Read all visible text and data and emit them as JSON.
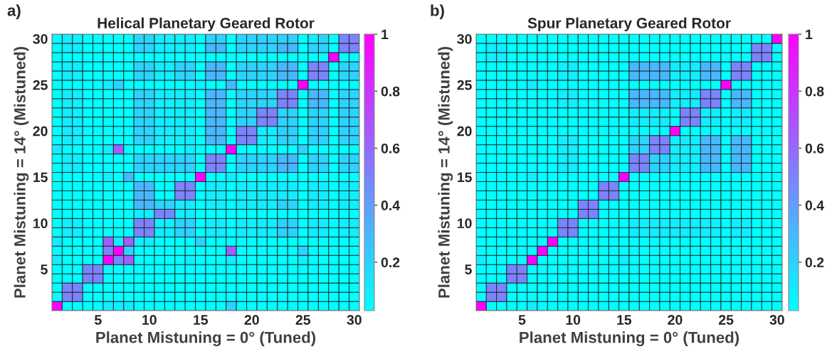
{
  "chart_data": [
    {
      "type": "heatmap",
      "title": "Helical Planetary Geared Rotor",
      "xlabel": "Planet Mistuning = 0° (Tuned)",
      "ylabel": "Planet Mistuning = 14° (Mistuned)",
      "annotations": [
        "a)"
      ],
      "categories": [
        null,
        null,
        null,
        null,
        "5",
        null,
        null,
        null,
        null,
        "10",
        null,
        null,
        null,
        null,
        "15",
        null,
        null,
        null,
        null,
        "20",
        null,
        null,
        null,
        null,
        "25",
        null,
        null,
        null,
        null,
        "30"
      ],
      "y_categories": [
        "30",
        null,
        null,
        null,
        null,
        "25",
        null,
        null,
        null,
        null,
        "20",
        null,
        null,
        null,
        null,
        "15",
        null,
        null,
        null,
        null,
        "10",
        null,
        null,
        null,
        null,
        "5",
        null,
        null,
        null,
        null
      ],
      "clim": [
        0.03,
        1
      ],
      "cticks": [
        0.2,
        0.4,
        0.6,
        0.8,
        1
      ],
      "cells": [
        [
          0.03,
          0.1,
          0.1,
          0.03,
          0.03,
          0.03,
          0.03,
          0.03,
          0.2,
          0.2,
          0.1,
          0.1,
          0.1,
          0.1,
          0.03,
          0.2,
          0.2,
          0.03,
          0.2,
          0.2,
          0.2,
          0.2,
          0.2,
          0.2,
          0.03,
          0.1,
          0.2,
          0.03,
          0.5,
          0.5
        ],
        [
          0.03,
          0.1,
          0.1,
          0.03,
          0.03,
          0.03,
          0.03,
          0.03,
          0.2,
          0.2,
          0.1,
          0.1,
          0.1,
          0.1,
          0.03,
          0.3,
          0.3,
          0.03,
          0.2,
          0.2,
          0.2,
          0.2,
          0.3,
          0.3,
          0.03,
          0.2,
          0.2,
          0.03,
          0.5,
          0.5
        ],
        [
          0.03,
          0.03,
          0.03,
          0.03,
          0.03,
          0.03,
          0.03,
          0.03,
          0.03,
          0.03,
          0.03,
          0.03,
          0.03,
          0.03,
          0.03,
          0.03,
          0.03,
          0.03,
          0.03,
          0.03,
          0.03,
          0.03,
          0.03,
          0.03,
          0.03,
          0.03,
          0.03,
          1,
          0.03,
          0.03
        ],
        [
          0.03,
          0.1,
          0.1,
          0.03,
          0.03,
          0.03,
          0.03,
          0.03,
          0.2,
          0.2,
          0.1,
          0.1,
          0.2,
          0.2,
          0.03,
          0.3,
          0.3,
          0.03,
          0.2,
          0.2,
          0.2,
          0.2,
          0.3,
          0.3,
          0.03,
          0.5,
          0.5,
          0.03,
          0.2,
          0.2
        ],
        [
          0.03,
          0.1,
          0.1,
          0.03,
          0.03,
          0.03,
          0.03,
          0.03,
          0.2,
          0.2,
          0.1,
          0.1,
          0.2,
          0.2,
          0.03,
          0.3,
          0.3,
          0.03,
          0.2,
          0.2,
          0.2,
          0.2,
          0.3,
          0.3,
          0.03,
          0.5,
          0.5,
          0.03,
          0.2,
          0.2
        ],
        [
          0.03,
          0.03,
          0.03,
          0.03,
          0.03,
          0.1,
          0.2,
          0.03,
          0.03,
          0.03,
          0.03,
          0.03,
          0.03,
          0.03,
          0.1,
          0.03,
          0.03,
          0.3,
          0.03,
          0.03,
          0.03,
          0.03,
          0.03,
          0.03,
          1,
          0.03,
          0.03,
          0.03,
          0.03,
          0.03
        ],
        [
          0.03,
          0.1,
          0.1,
          0.03,
          0.03,
          0.03,
          0.03,
          0.03,
          0.2,
          0.2,
          0.1,
          0.1,
          0.1,
          0.1,
          0.03,
          0.3,
          0.3,
          0.03,
          0.2,
          0.2,
          0.2,
          0.2,
          0.5,
          0.5,
          0.03,
          0.3,
          0.3,
          0.03,
          0.2,
          0.2
        ],
        [
          0.03,
          0.1,
          0.1,
          0.03,
          0.03,
          0.03,
          0.03,
          0.03,
          0.2,
          0.2,
          0.1,
          0.1,
          0.1,
          0.1,
          0.03,
          0.3,
          0.3,
          0.03,
          0.2,
          0.2,
          0.2,
          0.2,
          0.5,
          0.5,
          0.03,
          0.3,
          0.3,
          0.03,
          0.2,
          0.2
        ],
        [
          0.03,
          0.1,
          0.1,
          0.03,
          0.03,
          0.03,
          0.03,
          0.03,
          0.2,
          0.2,
          0.1,
          0.1,
          0.1,
          0.1,
          0.03,
          0.3,
          0.3,
          0.03,
          0.2,
          0.2,
          0.5,
          0.5,
          0.2,
          0.2,
          0.03,
          0.2,
          0.2,
          0.03,
          0.2,
          0.2
        ],
        [
          0.03,
          0.1,
          0.1,
          0.03,
          0.03,
          0.03,
          0.03,
          0.03,
          0.2,
          0.2,
          0.1,
          0.1,
          0.1,
          0.1,
          0.03,
          0.3,
          0.3,
          0.03,
          0.2,
          0.2,
          0.5,
          0.5,
          0.2,
          0.2,
          0.03,
          0.2,
          0.2,
          0.03,
          0.2,
          0.2
        ],
        [
          0.03,
          0.1,
          0.1,
          0.03,
          0.03,
          0.03,
          0.03,
          0.03,
          0.2,
          0.2,
          0.1,
          0.1,
          0.1,
          0.1,
          0.03,
          0.3,
          0.3,
          0.03,
          0.5,
          0.5,
          0.1,
          0.1,
          0.2,
          0.2,
          0.03,
          0.2,
          0.2,
          0.03,
          0.2,
          0.2
        ],
        [
          0.03,
          0.1,
          0.1,
          0.03,
          0.03,
          0.03,
          0.03,
          0.03,
          0.2,
          0.2,
          0.1,
          0.1,
          0.1,
          0.1,
          0.03,
          0.3,
          0.3,
          0.03,
          0.5,
          0.5,
          0.1,
          0.1,
          0.2,
          0.2,
          0.03,
          0.2,
          0.2,
          0.03,
          0.2,
          0.2
        ],
        [
          0.1,
          0.03,
          0.03,
          0.03,
          0.03,
          0.1,
          0.65,
          0.03,
          0.03,
          0.03,
          0.03,
          0.03,
          0.03,
          0.1,
          0.03,
          0.03,
          0.03,
          1,
          0.03,
          0.03,
          0.03,
          0.03,
          0.03,
          0.03,
          0.2,
          0.03,
          0.03,
          0.03,
          0.03,
          0.03
        ],
        [
          0.03,
          0.1,
          0.1,
          0.03,
          0.03,
          0.03,
          0.03,
          0.03,
          0.2,
          0.2,
          0.2,
          0.2,
          0.2,
          0.2,
          0.03,
          0.5,
          0.5,
          0.03,
          0.2,
          0.2,
          0.2,
          0.2,
          0.3,
          0.3,
          0.03,
          0.2,
          0.2,
          0.03,
          0.2,
          0.2
        ],
        [
          0.03,
          0.1,
          0.1,
          0.03,
          0.03,
          0.03,
          0.03,
          0.03,
          0.2,
          0.2,
          0.2,
          0.2,
          0.2,
          0.2,
          0.03,
          0.5,
          0.5,
          0.03,
          0.2,
          0.2,
          0.2,
          0.2,
          0.3,
          0.3,
          0.03,
          0.2,
          0.2,
          0.03,
          0.2,
          0.2
        ],
        [
          0.03,
          0.03,
          0.03,
          0.03,
          0.03,
          0.1,
          0.03,
          0.3,
          0.03,
          0.03,
          0.03,
          0.03,
          0.03,
          0.03,
          1,
          0.03,
          0.03,
          0.1,
          0.03,
          0.03,
          0.03,
          0.03,
          0.03,
          0.03,
          0.03,
          0.03,
          0.03,
          0.03,
          0.03,
          0.03
        ],
        [
          0.03,
          0.03,
          0.03,
          0.03,
          0.03,
          0.03,
          0.03,
          0.03,
          0.3,
          0.3,
          0.03,
          0.03,
          0.5,
          0.5,
          0.03,
          0.1,
          0.1,
          0.03,
          0.1,
          0.1,
          0.1,
          0.1,
          0.1,
          0.1,
          0.03,
          0.1,
          0.1,
          0.03,
          0.1,
          0.1
        ],
        [
          0.03,
          0.03,
          0.03,
          0.03,
          0.03,
          0.03,
          0.03,
          0.03,
          0.3,
          0.3,
          0.03,
          0.03,
          0.5,
          0.5,
          0.03,
          0.1,
          0.1,
          0.03,
          0.1,
          0.1,
          0.1,
          0.1,
          0.1,
          0.1,
          0.03,
          0.1,
          0.1,
          0.03,
          0.1,
          0.1
        ],
        [
          0.03,
          0.03,
          0.03,
          0.03,
          0.03,
          0.03,
          0.03,
          0.03,
          0.3,
          0.3,
          0.2,
          0.2,
          0.1,
          0.1,
          0.03,
          0.1,
          0.1,
          0.03,
          0.1,
          0.1,
          0.1,
          0.1,
          0.2,
          0.2,
          0.03,
          0.1,
          0.1,
          0.03,
          0.1,
          0.1
        ],
        [
          0.03,
          0.03,
          0.03,
          0.03,
          0.03,
          0.03,
          0.03,
          0.03,
          0.1,
          0.1,
          0.5,
          0.5,
          0.1,
          0.1,
          0.03,
          0.03,
          0.03,
          0.03,
          0.03,
          0.03,
          0.03,
          0.03,
          0.03,
          0.03,
          0.03,
          0.03,
          0.03,
          0.03,
          0.03,
          0.03
        ],
        [
          0.03,
          0.1,
          0.1,
          0.03,
          0.03,
          0.03,
          0.03,
          0.03,
          0.5,
          0.5,
          0.1,
          0.1,
          0.2,
          0.2,
          0.03,
          0.1,
          0.1,
          0.03,
          0.1,
          0.1,
          0.1,
          0.1,
          0.2,
          0.2,
          0.03,
          0.1,
          0.1,
          0.03,
          0.1,
          0.1
        ],
        [
          0.03,
          0.1,
          0.1,
          0.03,
          0.03,
          0.03,
          0.03,
          0.03,
          0.5,
          0.5,
          0.1,
          0.1,
          0.2,
          0.2,
          0.03,
          0.1,
          0.1,
          0.03,
          0.1,
          0.1,
          0.1,
          0.1,
          0.2,
          0.2,
          0.03,
          0.1,
          0.1,
          0.03,
          0.1,
          0.1
        ],
        [
          0.1,
          0.03,
          0.03,
          0.03,
          0.03,
          0.65,
          0.1,
          0.65,
          0.1,
          0.1,
          0.03,
          0.03,
          0.03,
          0.03,
          0.2,
          0.03,
          0.03,
          0.03,
          0.03,
          0.03,
          0.03,
          0.03,
          0.03,
          0.03,
          0.03,
          0.03,
          0.03,
          0.03,
          0.03,
          0.03
        ],
        [
          0.03,
          0.03,
          0.03,
          0.03,
          0.03,
          0.5,
          1,
          0.2,
          0.03,
          0.03,
          0.03,
          0.03,
          0.03,
          0.03,
          0.03,
          0.03,
          0.03,
          0.65,
          0.03,
          0.03,
          0.03,
          0.03,
          0.03,
          0.03,
          0.2,
          0.03,
          0.03,
          0.03,
          0.03,
          0.03
        ],
        [
          0.1,
          0.03,
          0.03,
          0.03,
          0.03,
          1,
          0.5,
          0.65,
          0.03,
          0.03,
          0.03,
          0.03,
          0.03,
          0.1,
          0.03,
          0.03,
          0.03,
          0.1,
          0.03,
          0.03,
          0.03,
          0.03,
          0.03,
          0.03,
          0.1,
          0.03,
          0.03,
          0.03,
          0.03,
          0.03
        ],
        [
          0.03,
          0.03,
          0.03,
          0.5,
          0.5,
          0.03,
          0.03,
          0.03,
          0.03,
          0.03,
          0.03,
          0.03,
          0.03,
          0.03,
          0.03,
          0.03,
          0.03,
          0.03,
          0.03,
          0.03,
          0.03,
          0.03,
          0.03,
          0.03,
          0.03,
          0.03,
          0.03,
          0.03,
          0.03,
          0.03
        ],
        [
          0.03,
          0.03,
          0.03,
          0.5,
          0.5,
          0.03,
          0.03,
          0.03,
          0.03,
          0.03,
          0.03,
          0.03,
          0.03,
          0.03,
          0.03,
          0.03,
          0.03,
          0.03,
          0.03,
          0.03,
          0.03,
          0.03,
          0.03,
          0.03,
          0.03,
          0.03,
          0.03,
          0.03,
          0.03,
          0.03
        ],
        [
          0.03,
          0.5,
          0.5,
          0.03,
          0.03,
          0.03,
          0.03,
          0.03,
          0.03,
          0.03,
          0.03,
          0.03,
          0.03,
          0.03,
          0.03,
          0.03,
          0.03,
          0.03,
          0.03,
          0.03,
          0.03,
          0.03,
          0.03,
          0.03,
          0.03,
          0.03,
          0.03,
          0.03,
          0.03,
          0.03
        ],
        [
          0.03,
          0.5,
          0.5,
          0.03,
          0.03,
          0.03,
          0.03,
          0.03,
          0.03,
          0.03,
          0.03,
          0.03,
          0.03,
          0.03,
          0.03,
          0.03,
          0.03,
          0.03,
          0.03,
          0.03,
          0.03,
          0.03,
          0.03,
          0.03,
          0.03,
          0.03,
          0.03,
          0.03,
          0.03,
          0.03
        ],
        [
          1,
          0.03,
          0.03,
          0.03,
          0.03,
          0.1,
          0.1,
          0.1,
          0.03,
          0.03,
          0.03,
          0.03,
          0.03,
          0.03,
          0.03,
          0.03,
          0.03,
          0.2,
          0.03,
          0.03,
          0.03,
          0.03,
          0.03,
          0.03,
          0.03,
          0.03,
          0.03,
          0.03,
          0.03,
          0.03
        ]
      ]
    },
    {
      "type": "heatmap",
      "title": "Spur Planetary Geared Rotor",
      "xlabel": "Planet Mistuning = 0° (Tuned)",
      "ylabel": "Planet Mistuning = 14° (Mistuned)",
      "annotations": [
        "b)"
      ],
      "categories": [
        null,
        null,
        null,
        null,
        "5",
        null,
        null,
        null,
        null,
        "10",
        null,
        null,
        null,
        null,
        "15",
        null,
        null,
        null,
        null,
        "20",
        null,
        null,
        null,
        null,
        "25",
        null,
        null,
        null,
        null,
        "30"
      ],
      "y_categories": [
        "30",
        null,
        null,
        null,
        null,
        "25",
        null,
        null,
        null,
        null,
        "20",
        null,
        null,
        null,
        null,
        "15",
        null,
        null,
        null,
        null,
        "10",
        null,
        null,
        null,
        null,
        "5",
        null,
        null,
        null,
        null
      ],
      "clim": [
        0.03,
        1
      ],
      "cticks": [
        0.2,
        0.4,
        0.6,
        0.8,
        1
      ],
      "cells": [
        [
          0.03,
          0.03,
          0.03,
          0.03,
          0.03,
          0.03,
          0.03,
          0.03,
          0.03,
          0.03,
          0.03,
          0.03,
          0.03,
          0.03,
          0.03,
          0.03,
          0.03,
          0.03,
          0.03,
          0.03,
          0.03,
          0.03,
          0.03,
          0.03,
          0.03,
          0.03,
          0.03,
          0.03,
          0.03,
          1
        ],
        [
          0.03,
          0.1,
          0.1,
          0.03,
          0.03,
          0.03,
          0.03,
          0.03,
          0.03,
          0.03,
          0.03,
          0.03,
          0.03,
          0.03,
          0.03,
          0.03,
          0.03,
          0.03,
          0.03,
          0.03,
          0.03,
          0.03,
          0.03,
          0.03,
          0.03,
          0.03,
          0.03,
          0.5,
          0.5,
          0.03
        ],
        [
          0.03,
          0.1,
          0.1,
          0.03,
          0.03,
          0.03,
          0.03,
          0.03,
          0.03,
          0.03,
          0.03,
          0.03,
          0.03,
          0.03,
          0.03,
          0.03,
          0.03,
          0.03,
          0.03,
          0.03,
          0.03,
          0.03,
          0.03,
          0.03,
          0.03,
          0.03,
          0.03,
          0.5,
          0.5,
          0.03
        ],
        [
          0.03,
          0.03,
          0.03,
          0.03,
          0.03,
          0.03,
          0.03,
          0.03,
          0.1,
          0.1,
          0.03,
          0.03,
          0.03,
          0.03,
          0.03,
          0.3,
          0.3,
          0.3,
          0.3,
          0.1,
          0.1,
          0.1,
          0.3,
          0.3,
          0.03,
          0.5,
          0.5,
          0.03,
          0.03,
          0.03
        ],
        [
          0.03,
          0.03,
          0.03,
          0.03,
          0.03,
          0.03,
          0.03,
          0.03,
          0.1,
          0.1,
          0.03,
          0.03,
          0.03,
          0.03,
          0.03,
          0.3,
          0.3,
          0.3,
          0.3,
          0.1,
          0.1,
          0.1,
          0.3,
          0.3,
          0.03,
          0.5,
          0.5,
          0.03,
          0.03,
          0.03
        ],
        [
          0.03,
          0.03,
          0.03,
          0.03,
          0.03,
          0.1,
          0.03,
          0.03,
          0.03,
          0.03,
          0.03,
          0.03,
          0.03,
          0.03,
          0.03,
          0.03,
          0.03,
          0.03,
          0.03,
          0.03,
          0.03,
          0.03,
          0.03,
          0.03,
          1,
          0.03,
          0.03,
          0.03,
          0.03,
          0.03
        ],
        [
          0.03,
          0.03,
          0.03,
          0.03,
          0.03,
          0.03,
          0.03,
          0.03,
          0.1,
          0.1,
          0.03,
          0.03,
          0.03,
          0.03,
          0.03,
          0.3,
          0.3,
          0.3,
          0.3,
          0.1,
          0.1,
          0.1,
          0.5,
          0.5,
          0.03,
          0.3,
          0.3,
          0.03,
          0.03,
          0.03
        ],
        [
          0.03,
          0.03,
          0.03,
          0.03,
          0.03,
          0.03,
          0.03,
          0.03,
          0.1,
          0.1,
          0.03,
          0.03,
          0.03,
          0.03,
          0.03,
          0.3,
          0.3,
          0.3,
          0.3,
          0.1,
          0.1,
          0.1,
          0.5,
          0.5,
          0.03,
          0.3,
          0.3,
          0.03,
          0.03,
          0.03
        ],
        [
          0.03,
          0.03,
          0.03,
          0.03,
          0.03,
          0.03,
          0.03,
          0.03,
          0.03,
          0.03,
          0.03,
          0.03,
          0.03,
          0.03,
          0.03,
          0.1,
          0.1,
          0.1,
          0.1,
          0.03,
          0.5,
          0.5,
          0.1,
          0.1,
          0.03,
          0.1,
          0.1,
          0.03,
          0.03,
          0.03
        ],
        [
          0.03,
          0.03,
          0.03,
          0.03,
          0.03,
          0.03,
          0.03,
          0.03,
          0.03,
          0.03,
          0.03,
          0.03,
          0.03,
          0.03,
          0.03,
          0.1,
          0.1,
          0.1,
          0.1,
          0.03,
          0.5,
          0.5,
          0.1,
          0.1,
          0.03,
          0.1,
          0.1,
          0.03,
          0.03,
          0.03
        ],
        [
          0.03,
          0.03,
          0.03,
          0.03,
          0.03,
          0.03,
          0.03,
          0.03,
          0.03,
          0.03,
          0.03,
          0.03,
          0.03,
          0.03,
          0.03,
          0.03,
          0.03,
          0.03,
          0.03,
          1,
          0.03,
          0.03,
          0.03,
          0.03,
          0.03,
          0.03,
          0.03,
          0.03,
          0.03,
          0.03
        ],
        [
          0.03,
          0.03,
          0.03,
          0.03,
          0.03,
          0.03,
          0.03,
          0.03,
          0.1,
          0.1,
          0.03,
          0.03,
          0.03,
          0.03,
          0.03,
          0.2,
          0.2,
          0.5,
          0.5,
          0.1,
          0.1,
          0.1,
          0.3,
          0.3,
          0.03,
          0.3,
          0.3,
          0.03,
          0.03,
          0.03
        ],
        [
          0.03,
          0.03,
          0.03,
          0.03,
          0.03,
          0.03,
          0.03,
          0.03,
          0.1,
          0.1,
          0.03,
          0.03,
          0.03,
          0.03,
          0.03,
          0.2,
          0.2,
          0.5,
          0.5,
          0.1,
          0.1,
          0.1,
          0.3,
          0.3,
          0.03,
          0.3,
          0.3,
          0.03,
          0.03,
          0.03
        ],
        [
          0.03,
          0.03,
          0.03,
          0.03,
          0.03,
          0.03,
          0.03,
          0.03,
          0.1,
          0.1,
          0.03,
          0.03,
          0.03,
          0.03,
          0.03,
          0.5,
          0.5,
          0.2,
          0.2,
          0.1,
          0.1,
          0.1,
          0.3,
          0.3,
          0.03,
          0.3,
          0.3,
          0.03,
          0.03,
          0.03
        ],
        [
          0.03,
          0.03,
          0.03,
          0.03,
          0.03,
          0.03,
          0.03,
          0.03,
          0.1,
          0.1,
          0.03,
          0.03,
          0.03,
          0.03,
          0.03,
          0.5,
          0.5,
          0.2,
          0.2,
          0.1,
          0.1,
          0.1,
          0.3,
          0.3,
          0.03,
          0.3,
          0.3,
          0.03,
          0.03,
          0.03
        ],
        [
          0.03,
          0.03,
          0.03,
          0.03,
          0.03,
          0.1,
          0.03,
          0.03,
          0.03,
          0.03,
          0.03,
          0.03,
          0.03,
          0.03,
          1,
          0.03,
          0.03,
          0.03,
          0.03,
          0.03,
          0.03,
          0.03,
          0.03,
          0.03,
          0.03,
          0.03,
          0.03,
          0.03,
          0.03,
          0.03
        ],
        [
          0.03,
          0.03,
          0.03,
          0.03,
          0.03,
          0.03,
          0.03,
          0.03,
          0.03,
          0.03,
          0.03,
          0.03,
          0.5,
          0.5,
          0.03,
          0.03,
          0.03,
          0.03,
          0.03,
          0.03,
          0.03,
          0.03,
          0.03,
          0.03,
          0.03,
          0.03,
          0.03,
          0.03,
          0.03,
          0.03
        ],
        [
          0.03,
          0.03,
          0.03,
          0.03,
          0.03,
          0.03,
          0.03,
          0.03,
          0.03,
          0.03,
          0.03,
          0.03,
          0.5,
          0.5,
          0.03,
          0.03,
          0.03,
          0.03,
          0.03,
          0.03,
          0.03,
          0.03,
          0.03,
          0.03,
          0.03,
          0.03,
          0.03,
          0.03,
          0.03,
          0.03
        ],
        [
          0.03,
          0.03,
          0.03,
          0.03,
          0.03,
          0.03,
          0.03,
          0.03,
          0.03,
          0.03,
          0.5,
          0.5,
          0.03,
          0.03,
          0.03,
          0.03,
          0.03,
          0.03,
          0.03,
          0.03,
          0.03,
          0.03,
          0.03,
          0.03,
          0.03,
          0.03,
          0.03,
          0.03,
          0.03,
          0.03
        ],
        [
          0.03,
          0.03,
          0.03,
          0.03,
          0.03,
          0.03,
          0.03,
          0.03,
          0.03,
          0.03,
          0.5,
          0.5,
          0.03,
          0.03,
          0.03,
          0.03,
          0.03,
          0.03,
          0.03,
          0.03,
          0.03,
          0.03,
          0.03,
          0.03,
          0.03,
          0.03,
          0.03,
          0.03,
          0.03,
          0.03
        ],
        [
          0.03,
          0.03,
          0.03,
          0.03,
          0.03,
          0.03,
          0.03,
          0.03,
          0.5,
          0.5,
          0.03,
          0.03,
          0.03,
          0.03,
          0.03,
          0.1,
          0.1,
          0.1,
          0.1,
          0.1,
          0.1,
          0.1,
          0.1,
          0.1,
          0.03,
          0.1,
          0.1,
          0.03,
          0.03,
          0.03
        ],
        [
          0.03,
          0.03,
          0.03,
          0.03,
          0.03,
          0.03,
          0.03,
          0.03,
          0.5,
          0.5,
          0.03,
          0.03,
          0.03,
          0.03,
          0.03,
          0.1,
          0.1,
          0.1,
          0.1,
          0.1,
          0.1,
          0.1,
          0.1,
          0.1,
          0.03,
          0.1,
          0.1,
          0.03,
          0.03,
          0.03
        ],
        [
          0.03,
          0.03,
          0.03,
          0.03,
          0.03,
          0.03,
          0.03,
          1,
          0.03,
          0.03,
          0.03,
          0.03,
          0.03,
          0.03,
          0.03,
          0.03,
          0.03,
          0.03,
          0.03,
          0.03,
          0.03,
          0.03,
          0.03,
          0.03,
          0.03,
          0.03,
          0.03,
          0.03,
          0.03,
          0.03
        ],
        [
          0.03,
          0.03,
          0.03,
          0.03,
          0.03,
          0.03,
          1,
          0.03,
          0.03,
          0.03,
          0.03,
          0.03,
          0.03,
          0.03,
          0.03,
          0.03,
          0.03,
          0.03,
          0.03,
          0.03,
          0.03,
          0.03,
          0.03,
          0.03,
          0.03,
          0.03,
          0.03,
          0.03,
          0.03,
          0.03
        ],
        [
          0.1,
          0.03,
          0.03,
          0.03,
          0.03,
          1,
          0.03,
          0.03,
          0.03,
          0.03,
          0.03,
          0.03,
          0.03,
          0.03,
          0.1,
          0.03,
          0.03,
          0.03,
          0.03,
          0.03,
          0.03,
          0.03,
          0.03,
          0.03,
          0.03,
          0.03,
          0.03,
          0.03,
          0.03,
          0.03
        ],
        [
          0.03,
          0.03,
          0.03,
          0.5,
          0.5,
          0.03,
          0.03,
          0.03,
          0.03,
          0.03,
          0.03,
          0.03,
          0.03,
          0.03,
          0.03,
          0.03,
          0.03,
          0.03,
          0.03,
          0.03,
          0.03,
          0.03,
          0.03,
          0.03,
          0.03,
          0.03,
          0.03,
          0.03,
          0.03,
          0.03
        ],
        [
          0.03,
          0.03,
          0.03,
          0.5,
          0.5,
          0.03,
          0.03,
          0.03,
          0.03,
          0.03,
          0.03,
          0.03,
          0.03,
          0.03,
          0.03,
          0.03,
          0.03,
          0.03,
          0.03,
          0.03,
          0.03,
          0.03,
          0.03,
          0.03,
          0.03,
          0.03,
          0.03,
          0.03,
          0.03,
          0.03
        ],
        [
          0.03,
          0.5,
          0.5,
          0.03,
          0.03,
          0.03,
          0.03,
          0.03,
          0.03,
          0.03,
          0.03,
          0.03,
          0.03,
          0.03,
          0.03,
          0.03,
          0.03,
          0.03,
          0.03,
          0.03,
          0.03,
          0.03,
          0.03,
          0.03,
          0.03,
          0.03,
          0.03,
          0.03,
          0.03,
          0.03
        ],
        [
          0.03,
          0.5,
          0.5,
          0.03,
          0.03,
          0.03,
          0.03,
          0.03,
          0.03,
          0.03,
          0.03,
          0.03,
          0.03,
          0.03,
          0.03,
          0.03,
          0.03,
          0.03,
          0.03,
          0.03,
          0.03,
          0.03,
          0.03,
          0.03,
          0.03,
          0.03,
          0.03,
          0.03,
          0.03,
          0.03
        ],
        [
          1,
          0.03,
          0.03,
          0.03,
          0.03,
          0.1,
          0.03,
          0.03,
          0.03,
          0.03,
          0.03,
          0.03,
          0.03,
          0.03,
          0.03,
          0.03,
          0.03,
          0.03,
          0.03,
          0.03,
          0.03,
          0.03,
          0.03,
          0.03,
          0.03,
          0.03,
          0.03,
          0.03,
          0.03,
          0.03
        ]
      ]
    }
  ]
}
